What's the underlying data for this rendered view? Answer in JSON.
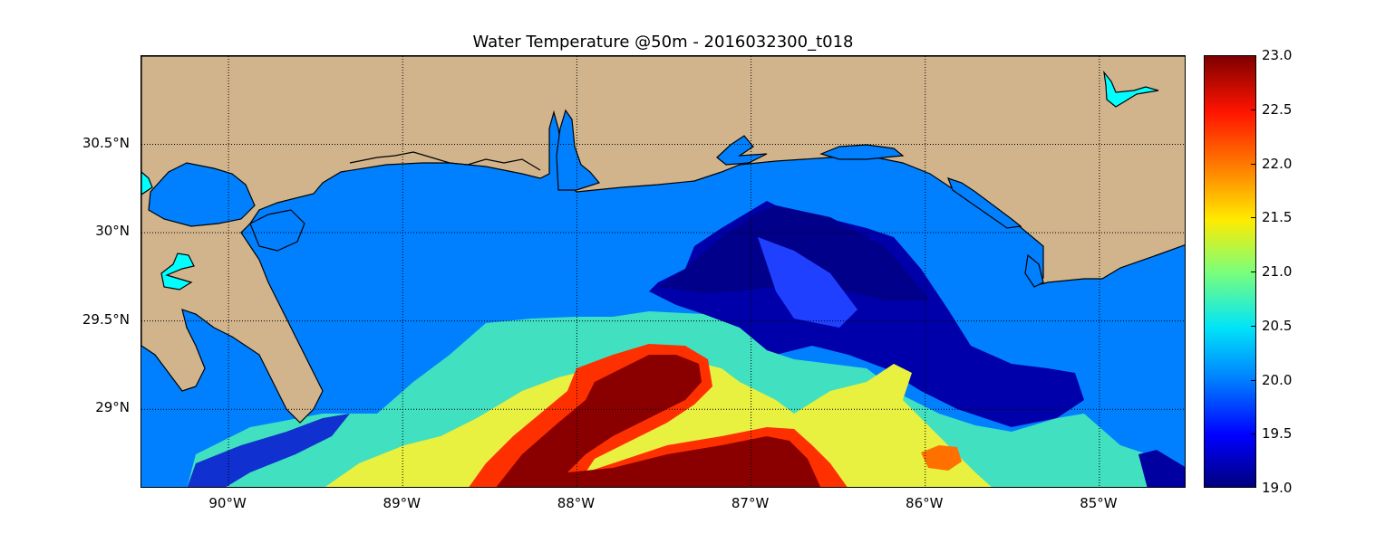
{
  "title": "Water Temperature @50m - 2016032300_t018",
  "map": {
    "lon_range": [
      -90.5,
      -84.5
    ],
    "lat_range": [
      28.55,
      31.0
    ],
    "lat_ticks": [
      {
        "value": 30.5,
        "label": "30.5°N"
      },
      {
        "value": 30.0,
        "label": "30°N"
      },
      {
        "value": 29.5,
        "label": "29.5°N"
      },
      {
        "value": 29.0,
        "label": "29°N"
      }
    ],
    "lon_ticks": [
      {
        "value": -90,
        "label": "90°W"
      },
      {
        "value": -89,
        "label": "89°W"
      },
      {
        "value": -88,
        "label": "88°W"
      },
      {
        "value": -87,
        "label": "87°W"
      },
      {
        "value": -86,
        "label": "86°W"
      },
      {
        "value": -85,
        "label": "85°W"
      }
    ],
    "land_color": "#d2b48c",
    "lake_color": "#00ffff",
    "gridlines": "dotted"
  },
  "colorbar": {
    "min": 19.0,
    "max": 23.0,
    "colormap": "jet",
    "ticks": [
      "23.0",
      "22.5",
      "22.0",
      "21.5",
      "21.0",
      "20.5",
      "20.0",
      "19.5",
      "19.0"
    ]
  }
}
